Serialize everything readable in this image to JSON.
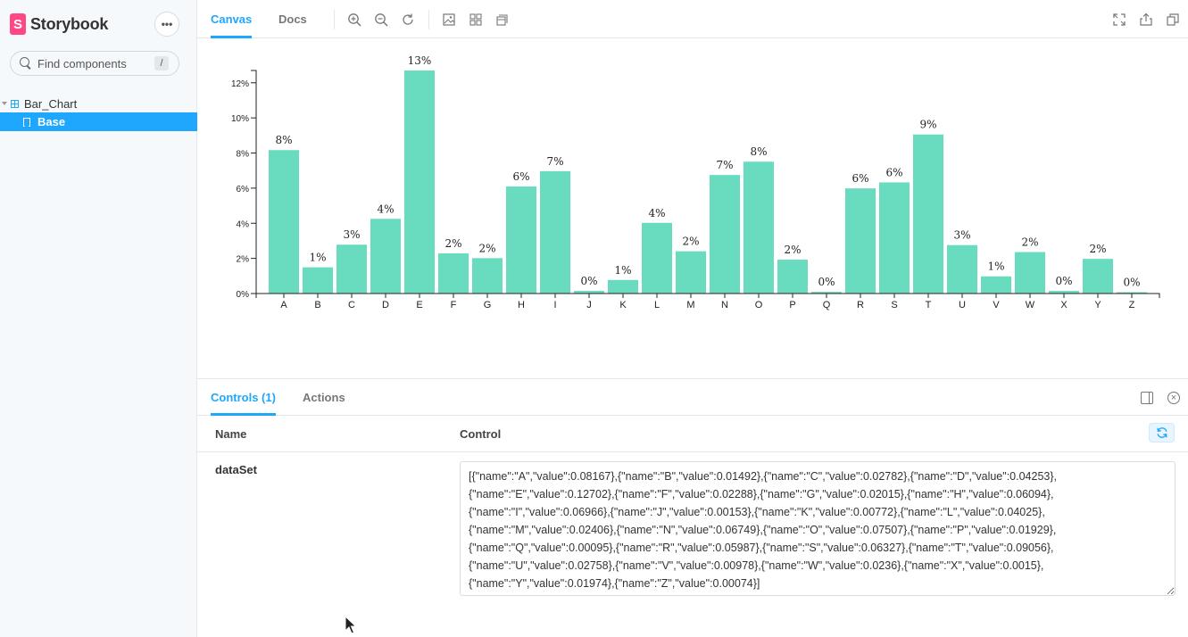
{
  "sidebar": {
    "brand": "Storybook",
    "brand_logo_letter": "S",
    "menu_label": "•••",
    "search": {
      "placeholder": "Find components",
      "shortcut": "/"
    },
    "tree": {
      "group": "Bar_Chart",
      "item": "Base"
    }
  },
  "toolbar": {
    "tabs": [
      {
        "label": "Canvas",
        "active": true
      },
      {
        "label": "Docs",
        "active": false
      }
    ],
    "icons": [
      "zoom-in-icon",
      "zoom-out-icon",
      "zoom-reset-icon",
      "background-icon",
      "grid-icon",
      "outline-icon",
      "fullscreen-icon",
      "share-icon",
      "copy-link-icon"
    ]
  },
  "chart_data": {
    "type": "bar",
    "categories": [
      "A",
      "B",
      "C",
      "D",
      "E",
      "F",
      "G",
      "H",
      "I",
      "J",
      "K",
      "L",
      "M",
      "N",
      "O",
      "P",
      "Q",
      "R",
      "S",
      "T",
      "U",
      "V",
      "W",
      "X",
      "Y",
      "Z"
    ],
    "values": [
      0.08167,
      0.01492,
      0.02782,
      0.04253,
      0.12702,
      0.02288,
      0.02015,
      0.06094,
      0.06966,
      0.00153,
      0.00772,
      0.04025,
      0.02406,
      0.06749,
      0.07507,
      0.01929,
      0.00095,
      0.05987,
      0.06327,
      0.09056,
      0.02758,
      0.00978,
      0.0236,
      0.0015,
      0.01974,
      0.00074
    ],
    "labels": [
      "8%",
      "1%",
      "3%",
      "4%",
      "13%",
      "2%",
      "2%",
      "6%",
      "7%",
      "0%",
      "1%",
      "4%",
      "2%",
      "7%",
      "8%",
      "2%",
      "0%",
      "6%",
      "6%",
      "9%",
      "3%",
      "1%",
      "2%",
      "0%",
      "2%",
      "0%"
    ],
    "yticks": [
      "0%",
      "2%",
      "4%",
      "6%",
      "8%",
      "10%",
      "12%"
    ],
    "ytick_values": [
      0,
      0.02,
      0.04,
      0.06,
      0.08,
      0.1,
      0.12
    ],
    "ylim": [
      0,
      0.127
    ],
    "bar_color": "#69dcc0",
    "title": "",
    "xlabel": "",
    "ylabel": ""
  },
  "panel": {
    "tabs": [
      {
        "label": "Controls (1)",
        "active": true
      },
      {
        "label": "Actions",
        "active": false
      }
    ],
    "columns": {
      "name": "Name",
      "control": "Control"
    },
    "rows": [
      {
        "name": "dataSet",
        "value": "[{\"name\":\"A\",\"value\":0.08167},{\"name\":\"B\",\"value\":0.01492},{\"name\":\"C\",\"value\":0.02782},{\"name\":\"D\",\"value\":0.04253},\n{\"name\":\"E\",\"value\":0.12702},{\"name\":\"F\",\"value\":0.02288},{\"name\":\"G\",\"value\":0.02015},{\"name\":\"H\",\"value\":0.06094},\n{\"name\":\"I\",\"value\":0.06966},{\"name\":\"J\",\"value\":0.00153},{\"name\":\"K\",\"value\":0.00772},{\"name\":\"L\",\"value\":0.04025},\n{\"name\":\"M\",\"value\":0.02406},{\"name\":\"N\",\"value\":0.06749},{\"name\":\"O\",\"value\":0.07507},{\"name\":\"P\",\"value\":0.01929},\n{\"name\":\"Q\",\"value\":0.00095},{\"name\":\"R\",\"value\":0.05987},{\"name\":\"S\",\"value\":0.06327},{\"name\":\"T\",\"value\":0.09056},\n{\"name\":\"U\",\"value\":0.02758},{\"name\":\"V\",\"value\":0.00978},{\"name\":\"W\",\"value\":0.0236},{\"name\":\"X\",\"value\":0.0015},\n{\"name\":\"Y\",\"value\":0.01974},{\"name\":\"Z\",\"value\":0.00074}]"
      }
    ]
  },
  "colors": {
    "accent": "#1ea7fd",
    "brand": "#ff4785"
  }
}
